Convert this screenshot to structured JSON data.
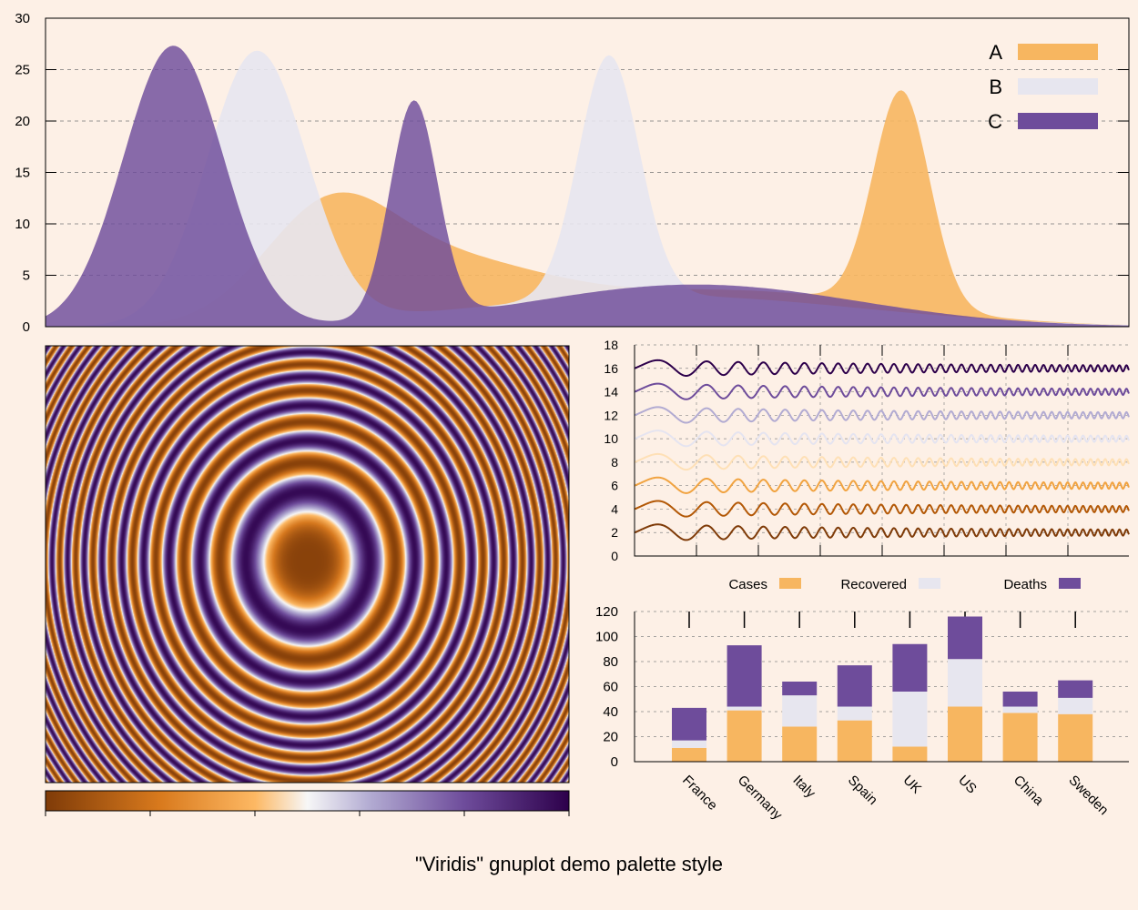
{
  "page_title": "\"Viridis\" gnuplot demo palette style",
  "colors": {
    "background": "#fdf0e6",
    "series_a": "#f7b660",
    "series_b": "#e7e6ef",
    "series_c": "#6e4c9b",
    "palette_dark_orange": "#7f3b08",
    "palette_mid_orange": "#fdb863",
    "palette_white": "#f7f7f7",
    "palette_mid_purple": "#b2abd2",
    "palette_dark_purple": "#2d004b"
  },
  "chart_data": [
    {
      "id": "density",
      "type": "area",
      "title": "",
      "xlim": [
        0,
        100
      ],
      "ylim": [
        0,
        30
      ],
      "yticks": [
        "0",
        "5",
        "10",
        "15",
        "20",
        "25",
        "30"
      ],
      "grid": true,
      "legend_position": "top-right",
      "legend": [
        {
          "label": "A",
          "color": "#f7b660"
        },
        {
          "label": "B",
          "color": "#e7e6ef"
        },
        {
          "label": "C",
          "color": "#6e4c9b"
        }
      ],
      "series": [
        {
          "name": "A",
          "components": [
            {
              "a": 10,
              "mu": 26,
              "sigma": 6
            },
            {
              "a": 5.5,
              "mu": 37,
              "sigma": 9
            },
            {
              "a": 3.5,
              "mu": 63,
              "sigma": 15
            },
            {
              "a": 21,
              "mu": 79,
              "sigma": 2.6
            }
          ]
        },
        {
          "name": "B",
          "components": [
            {
              "a": 26.5,
              "mu": 19.5,
              "sigma": 4.6
            },
            {
              "a": 23.5,
              "mu": 52,
              "sigma": 2.8
            },
            {
              "a": 3,
              "mu": 57,
              "sigma": 18
            }
          ]
        },
        {
          "name": "C",
          "components": [
            {
              "a": 27.3,
              "mu": 11.8,
              "sigma": 4.6
            },
            {
              "a": 21.1,
              "mu": 34,
              "sigma": 2.2
            },
            {
              "a": 4.1,
              "mu": 60,
              "sigma": 15
            }
          ]
        }
      ]
    },
    {
      "id": "ripple-map",
      "type": "heatmap",
      "title": "",
      "function": "sin(r^2), r = radial distance from center",
      "colorbar_ticks": 6
    },
    {
      "id": "damped-waves",
      "type": "line",
      "title": "",
      "ylim": [
        0,
        18
      ],
      "yticks": [
        "0",
        "2",
        "4",
        "6",
        "8",
        "10",
        "12",
        "14",
        "16",
        "18"
      ],
      "grid": true,
      "series": [
        {
          "name": "line-2",
          "offset": 2,
          "color": "#7f3b08"
        },
        {
          "name": "line-4",
          "offset": 4,
          "color": "#b35806"
        },
        {
          "name": "line-6",
          "offset": 6,
          "color": "#f1a340"
        },
        {
          "name": "line-8",
          "offset": 8,
          "color": "#fee0b6"
        },
        {
          "name": "line-10",
          "offset": 10,
          "color": "#e5e4f0"
        },
        {
          "name": "line-12",
          "offset": 12,
          "color": "#b2abd2"
        },
        {
          "name": "line-14",
          "offset": 14,
          "color": "#6e4c9b"
        },
        {
          "name": "line-16",
          "offset": 16,
          "color": "#2d004b"
        }
      ]
    },
    {
      "id": "stacked-bars",
      "type": "bar",
      "title": "",
      "stacked": true,
      "ylim": [
        0,
        120
      ],
      "yticks": [
        "0",
        "20",
        "40",
        "60",
        "80",
        "100",
        "120"
      ],
      "grid": true,
      "legend_position": "top",
      "categories": [
        "France",
        "Germany",
        "Italy",
        "Spain",
        "UK",
        "US",
        "China",
        "Sweden"
      ],
      "series": [
        {
          "name": "Cases",
          "color": "#f7b660",
          "values": [
            11,
            41,
            28,
            33,
            12,
            44,
            39,
            38
          ]
        },
        {
          "name": "Recovered",
          "color": "#e7e6ef",
          "values": [
            6,
            3,
            25,
            11,
            44,
            38,
            5,
            13
          ]
        },
        {
          "name": "Deaths",
          "color": "#6e4c9b",
          "values": [
            26,
            49,
            11,
            33,
            38,
            34,
            12,
            14
          ]
        }
      ]
    }
  ]
}
